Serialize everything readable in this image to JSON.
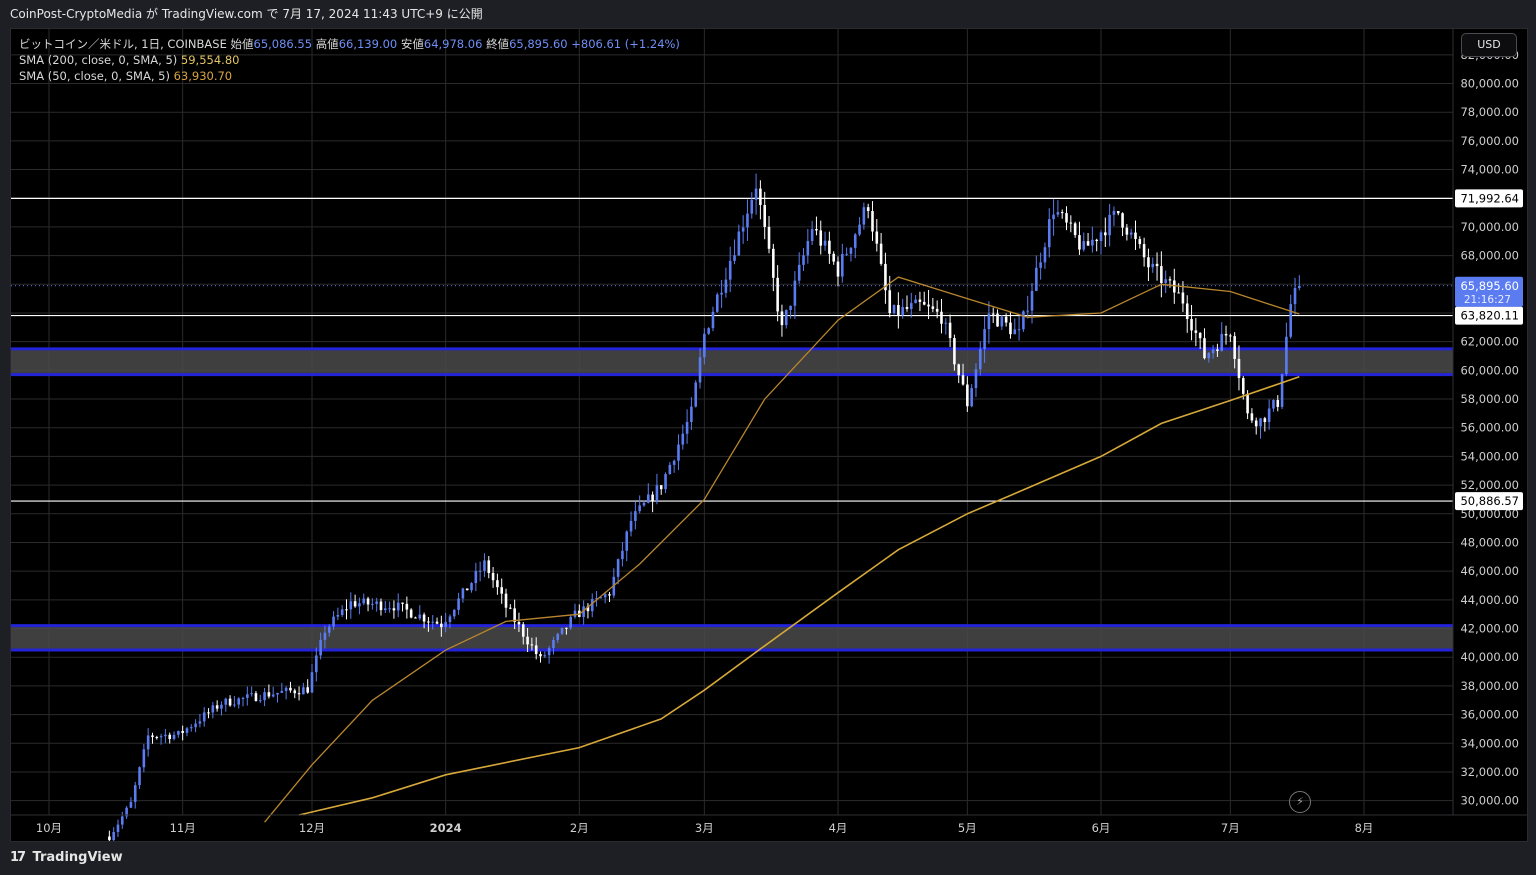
{
  "header": {
    "publish_text": "CoinPost-CryptoMedia が TradingView.com で 7月 17, 2024 11:43 UTC+9 に公開"
  },
  "legend": {
    "symbol": "ビットコイン／米ドル, 1日, COINBASE",
    "open_label": "始値",
    "open": "65,086.55",
    "high_label": "高値",
    "high": "66,139.00",
    "low_label": "安値",
    "low": "64,978.06",
    "close_label": "終値",
    "close": "65,895.60",
    "change": "+806.61 (+1.24%)",
    "sma200_label": "SMA (200, close, 0, SMA, 5)",
    "sma200_value": "59,554.80",
    "sma50_label": "SMA (50, close, 0, SMA, 5)",
    "sma50_value": "63,930.70"
  },
  "currency_button": "USD",
  "footer": {
    "brand": "TradingView",
    "brand_mark": "17"
  },
  "colors": {
    "background": "#000000",
    "grid": "#2b2b2b",
    "candle": "#5b7cf0",
    "candle_up": "#ffffff",
    "sma200": "#d6a83a",
    "sma50": "#b8862e",
    "zone_fill": "#4a4a4a",
    "zone_border": "#2323d8",
    "line_level": "#ffffff",
    "price_label_bg": "#5b7cf0"
  },
  "chart_data": {
    "type": "candlestick",
    "x_ticks": [
      "10月",
      "11月",
      "12月",
      "2024",
      "2月",
      "3月",
      "4月",
      "5月",
      "6月",
      "7月",
      "8月"
    ],
    "y_ticks": [
      "30,000.00",
      "32,000.00",
      "34,000.00",
      "36,000.00",
      "38,000.00",
      "40,000.00",
      "42,000.00",
      "44,000.00",
      "46,000.00",
      "48,000.00",
      "50,000.00",
      "52,000.00",
      "54,000.00",
      "56,000.00",
      "58,000.00",
      "60,000.00",
      "62,000.00",
      "64,000.00",
      "66,000.00",
      "68,000.00",
      "70,000.00",
      "72,000.00",
      "74,000.00",
      "76,000.00",
      "78,000.00",
      "80,000.00",
      "82,000.00"
    ],
    "ylim": [
      29000,
      83800
    ],
    "horizontal_levels": [
      {
        "value": 71992.64,
        "label": "71,992.64"
      },
      {
        "value": 63820.11,
        "label": "63,820.11"
      },
      {
        "value": 50886.57,
        "label": "50,886.57"
      }
    ],
    "zones": [
      {
        "low": 59700,
        "high": 61500
      },
      {
        "low": 40500,
        "high": 42200
      }
    ],
    "current_price": {
      "value": 65895.6,
      "label": "65,895.60",
      "countdown": "21:16:27"
    },
    "price_path": [
      [
        "2023-10-15",
        27500
      ],
      [
        "2023-10-20",
        29800
      ],
      [
        "2023-10-24",
        34500
      ],
      [
        "2023-10-31",
        34600
      ],
      [
        "2023-11-10",
        36800
      ],
      [
        "2023-11-20",
        37400
      ],
      [
        "2023-11-30",
        37800
      ],
      [
        "2023-12-04",
        41900
      ],
      [
        "2023-12-10",
        43800
      ],
      [
        "2023-12-20",
        43600
      ],
      [
        "2023-12-31",
        42300
      ],
      [
        "2024-01-10",
        46500
      ],
      [
        "2024-01-11",
        46000
      ],
      [
        "2024-01-15",
        43500
      ],
      [
        "2024-01-23",
        39800
      ],
      [
        "2024-01-31",
        42900
      ],
      [
        "2024-02-08",
        44500
      ],
      [
        "2024-02-13",
        49500
      ],
      [
        "2024-02-20",
        52000
      ],
      [
        "2024-02-27",
        57000
      ],
      [
        "2024-03-01",
        62500
      ],
      [
        "2024-03-05",
        66000
      ],
      [
        "2024-03-13",
        73000
      ],
      [
        "2024-03-19",
        62800
      ],
      [
        "2024-03-26",
        70000
      ],
      [
        "2024-04-01",
        67000
      ],
      [
        "2024-04-08",
        71600
      ],
      [
        "2024-04-13",
        63900
      ],
      [
        "2024-04-20",
        64500
      ],
      [
        "2024-04-25",
        63800
      ],
      [
        "2024-05-01",
        57700
      ],
      [
        "2024-05-06",
        64000
      ],
      [
        "2024-05-13",
        62500
      ],
      [
        "2024-05-21",
        71300
      ],
      [
        "2024-05-28",
        68400
      ],
      [
        "2024-06-05",
        71000
      ],
      [
        "2024-06-12",
        67300
      ],
      [
        "2024-06-20",
        64900
      ],
      [
        "2024-06-25",
        61000
      ],
      [
        "2024-07-01",
        62800
      ],
      [
        "2024-07-05",
        56800
      ],
      [
        "2024-07-08",
        56500
      ],
      [
        "2024-07-12",
        57800
      ],
      [
        "2024-07-15",
        64600
      ],
      [
        "2024-07-17",
        65900
      ]
    ],
    "sma50": [
      [
        "2023-11-20",
        28500
      ],
      [
        "2023-12-01",
        32500
      ],
      [
        "2023-12-15",
        37000
      ],
      [
        "2024-01-01",
        40500
      ],
      [
        "2024-01-15",
        42500
      ],
      [
        "2024-02-01",
        43000
      ],
      [
        "2024-02-15",
        46500
      ],
      [
        "2024-03-01",
        51000
      ],
      [
        "2024-03-15",
        58000
      ],
      [
        "2024-04-01",
        63500
      ],
      [
        "2024-04-15",
        66500
      ],
      [
        "2024-05-01",
        65000
      ],
      [
        "2024-05-15",
        63700
      ],
      [
        "2024-06-01",
        64000
      ],
      [
        "2024-06-15",
        66000
      ],
      [
        "2024-07-01",
        65500
      ],
      [
        "2024-07-17",
        63930.7
      ]
    ],
    "sma200": [
      [
        "2023-11-28",
        29000
      ],
      [
        "2023-12-15",
        30200
      ],
      [
        "2024-01-01",
        31800
      ],
      [
        "2024-02-01",
        33700
      ],
      [
        "2024-02-20",
        35700
      ],
      [
        "2024-03-01",
        37700
      ],
      [
        "2024-03-15",
        40800
      ],
      [
        "2024-04-01",
        44500
      ],
      [
        "2024-04-15",
        47500
      ],
      [
        "2024-05-01",
        50000
      ],
      [
        "2024-05-15",
        51800
      ],
      [
        "2024-06-01",
        54000
      ],
      [
        "2024-06-15",
        56300
      ],
      [
        "2024-07-01",
        57900
      ],
      [
        "2024-07-17",
        59554.8
      ]
    ]
  }
}
